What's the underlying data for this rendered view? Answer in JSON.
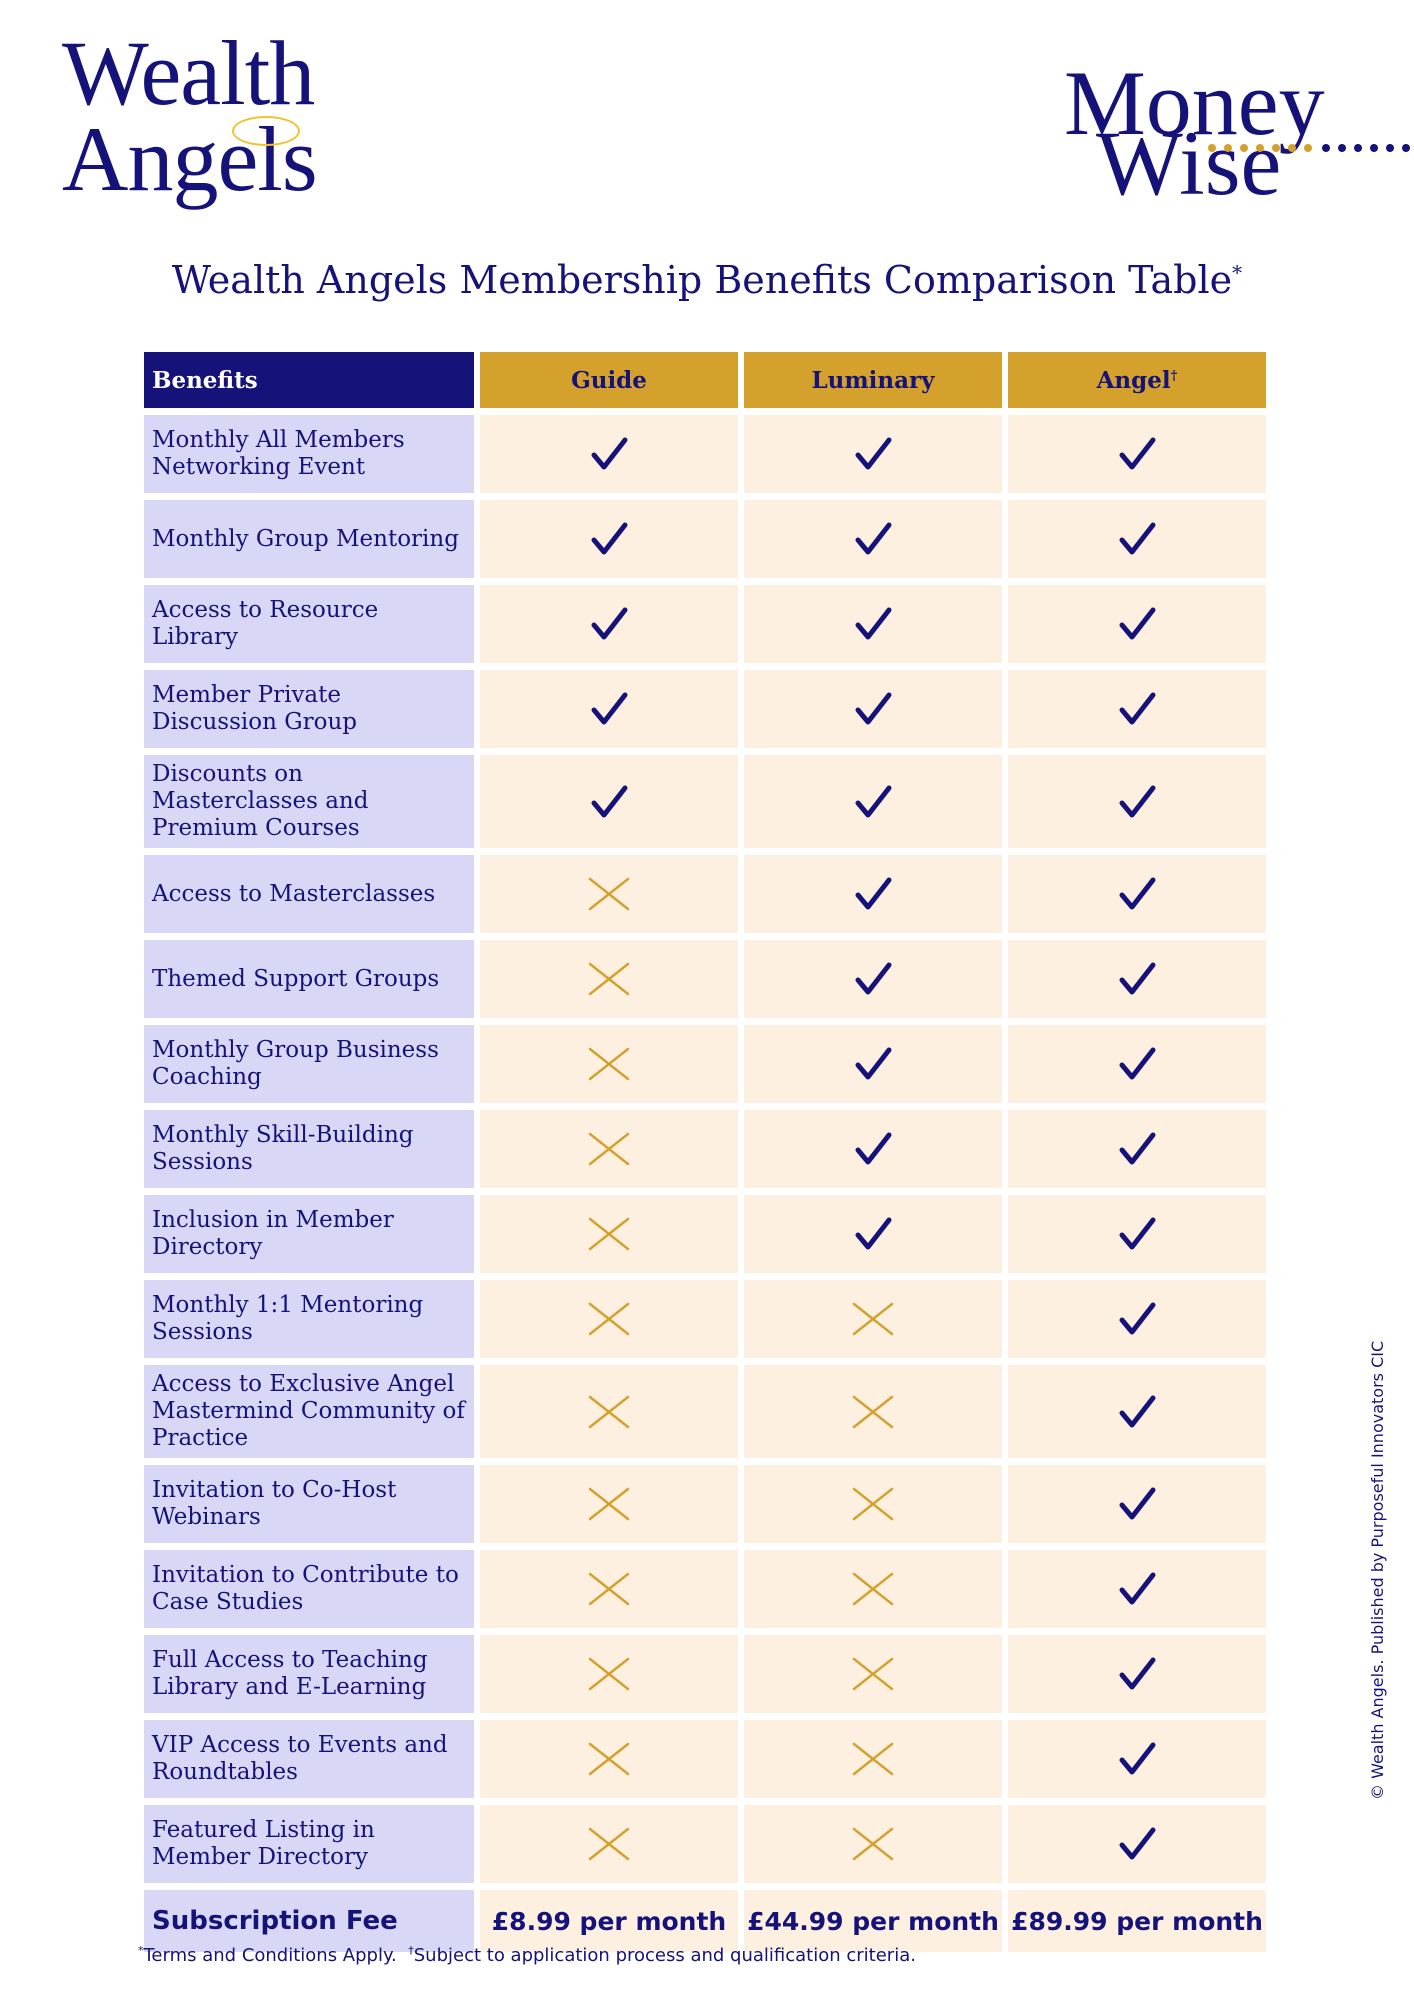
{
  "logos": {
    "left": [
      "Wealth",
      "Angels"
    ],
    "right": [
      "Money",
      "Wise"
    ]
  },
  "title": {
    "text": "Wealth Angels Membership Benefits Comparison Table",
    "sup": "*"
  },
  "table": {
    "headers": {
      "benefits": "Benefits",
      "tiers": [
        {
          "label": "Guide",
          "sup": ""
        },
        {
          "label": "Luminary",
          "sup": ""
        },
        {
          "label": "Angel",
          "sup": "†"
        }
      ]
    },
    "rows": [
      {
        "benefit": "Monthly All Members Networking Event",
        "marks": [
          true,
          true,
          true
        ]
      },
      {
        "benefit": "Monthly Group Mentoring",
        "marks": [
          true,
          true,
          true
        ]
      },
      {
        "benefit": "Access to Resource Library",
        "marks": [
          true,
          true,
          true
        ]
      },
      {
        "benefit": "Member Private Discussion Group",
        "marks": [
          true,
          true,
          true
        ]
      },
      {
        "benefit": "Discounts on Masterclasses and Premium Courses",
        "marks": [
          true,
          true,
          true
        ]
      },
      {
        "benefit": "Access to Masterclasses",
        "marks": [
          false,
          true,
          true
        ]
      },
      {
        "benefit": "Themed Support Groups",
        "marks": [
          false,
          true,
          true
        ]
      },
      {
        "benefit": "Monthly Group Business Coaching",
        "marks": [
          false,
          true,
          true
        ]
      },
      {
        "benefit": "Monthly Skill-Building Sessions",
        "marks": [
          false,
          true,
          true
        ]
      },
      {
        "benefit": "Inclusion in Member Directory",
        "marks": [
          false,
          true,
          true
        ]
      },
      {
        "benefit": "Monthly 1:1 Mentoring Sessions",
        "marks": [
          false,
          false,
          true
        ]
      },
      {
        "benefit": "Access to Exclusive Angel Mastermind Community of Practice",
        "marks": [
          false,
          false,
          true
        ]
      },
      {
        "benefit": "Invitation to Co-Host Webinars",
        "marks": [
          false,
          false,
          true
        ]
      },
      {
        "benefit": "Invitation to Contribute to Case Studies",
        "marks": [
          false,
          false,
          true
        ]
      },
      {
        "benefit": "Full Access to Teaching Library and E-Learning",
        "marks": [
          false,
          false,
          true
        ]
      },
      {
        "benefit": "VIP Access to Events and Roundtables",
        "marks": [
          false,
          false,
          true
        ]
      },
      {
        "benefit": "Featured Listing in Member Directory",
        "marks": [
          false,
          false,
          true
        ]
      }
    ],
    "fee": {
      "label": "Subscription Fee",
      "values": [
        "£8.99 per month",
        "£44.99 per month",
        "£89.99 per month"
      ]
    }
  },
  "footnote": {
    "mark1": "*",
    "text1": "Terms and Conditions Apply.",
    "mark2": "†",
    "text2": "Subject to application process and qualification criteria."
  },
  "copyright": "© Wealth Angels. Published by Purposeful Innovators CIC",
  "colors": {
    "navy": "#15137a",
    "gold": "#d4a12d",
    "benefit_bg": "#d8d8f6",
    "cell_bg": "#fdf0e1"
  },
  "icons": {
    "included": "check-icon",
    "excluded": "cross-icon"
  }
}
